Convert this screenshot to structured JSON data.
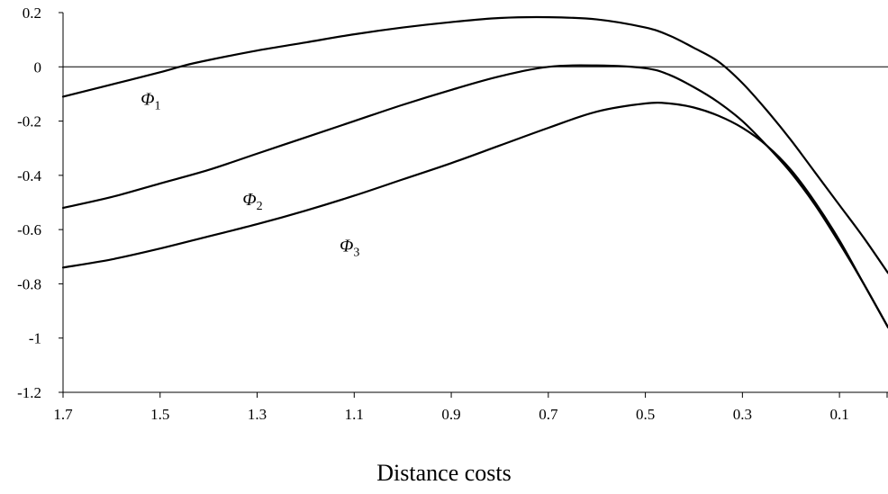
{
  "chart_data": {
    "type": "line",
    "title": "",
    "xlabel": "Distance costs",
    "ylabel": "",
    "xlim": [
      1.7,
      0.0
    ],
    "ylim": [
      -1.2,
      0.2
    ],
    "x_reversed": true,
    "x_ticks": [
      1.7,
      1.5,
      1.3,
      1.1,
      0.9,
      0.7,
      0.5,
      0.3,
      0.1
    ],
    "x_tick_labels": [
      "1.7",
      "1.5",
      "1.3",
      "1.1",
      "0.9",
      "0.7",
      "0.5",
      "0.3",
      "0.1"
    ],
    "y_ticks": [
      0.2,
      0,
      -0.2,
      -0.4,
      -0.6,
      -0.8,
      -1,
      -1.2
    ],
    "y_tick_labels": [
      "0.2",
      "0",
      "-0.2",
      "-0.4",
      "-0.6",
      "-0.8",
      "-1",
      "-1.2"
    ],
    "grid": false,
    "legend": "none",
    "series": [
      {
        "name": "Φ1",
        "label_main": "Φ",
        "label_sub": "1",
        "color": "#000000",
        "x": [
          1.7,
          1.6,
          1.5,
          1.45,
          1.4,
          1.3,
          1.2,
          1.1,
          1.0,
          0.9,
          0.8,
          0.7,
          0.6,
          0.5,
          0.45,
          0.4,
          0.35,
          0.3,
          0.25,
          0.2,
          0.15,
          0.1,
          0.05,
          0.0
        ],
        "y": [
          -0.11,
          -0.065,
          -0.02,
          0.005,
          0.025,
          0.06,
          0.09,
          0.12,
          0.145,
          0.165,
          0.18,
          0.183,
          0.175,
          0.145,
          0.115,
          0.07,
          0.02,
          -0.06,
          -0.16,
          -0.27,
          -0.39,
          -0.51,
          -0.63,
          -0.76
        ]
      },
      {
        "name": "Φ2",
        "label_main": "Φ",
        "label_sub": "2",
        "color": "#000000",
        "x": [
          1.7,
          1.6,
          1.5,
          1.4,
          1.3,
          1.2,
          1.1,
          1.0,
          0.9,
          0.8,
          0.7,
          0.6,
          0.5,
          0.45,
          0.4,
          0.35,
          0.3,
          0.25,
          0.2,
          0.15,
          0.1,
          0.05,
          0.0
        ],
        "y": [
          -0.52,
          -0.48,
          -0.43,
          -0.38,
          -0.32,
          -0.26,
          -0.2,
          -0.14,
          -0.085,
          -0.035,
          0.0,
          0.005,
          -0.005,
          -0.03,
          -0.075,
          -0.13,
          -0.2,
          -0.29,
          -0.39,
          -0.51,
          -0.65,
          -0.8,
          -0.96
        ]
      },
      {
        "name": "Φ3",
        "label_main": "Φ",
        "label_sub": "3",
        "color": "#000000",
        "x": [
          1.7,
          1.6,
          1.5,
          1.4,
          1.3,
          1.2,
          1.1,
          1.0,
          0.9,
          0.8,
          0.7,
          0.6,
          0.5,
          0.45,
          0.4,
          0.35,
          0.3,
          0.25,
          0.2,
          0.15,
          0.1,
          0.05,
          0.0
        ],
        "y": [
          -0.74,
          -0.71,
          -0.67,
          -0.625,
          -0.58,
          -0.53,
          -0.475,
          -0.415,
          -0.355,
          -0.29,
          -0.225,
          -0.165,
          -0.135,
          -0.135,
          -0.15,
          -0.18,
          -0.225,
          -0.29,
          -0.38,
          -0.5,
          -0.64,
          -0.8,
          -0.96
        ]
      }
    ],
    "series_labels_at": [
      {
        "series": 0,
        "x": 1.54,
        "y": -0.14
      },
      {
        "series": 1,
        "x": 1.33,
        "y": -0.51
      },
      {
        "series": 2,
        "x": 1.13,
        "y": -0.68
      }
    ]
  }
}
